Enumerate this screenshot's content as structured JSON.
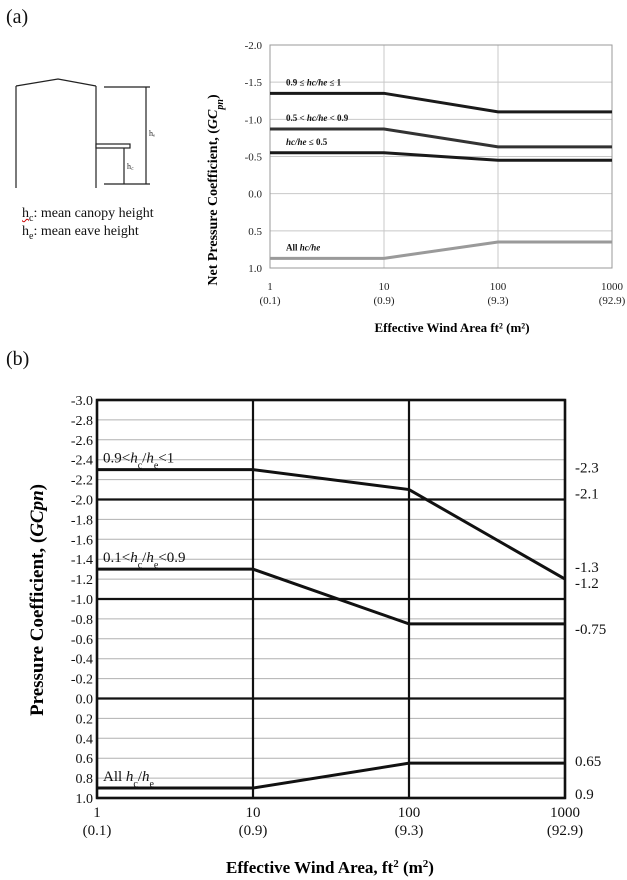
{
  "panel_a": {
    "label": "(a)",
    "sketch": {
      "dim_left": "hₑ",
      "dim_right": "h꜀",
      "notes": [
        {
          "sym": "h",
          "sub": "c",
          "colon": ":",
          "text": " mean canopy height"
        },
        {
          "sym": "h",
          "sub": "e",
          "colon": ":",
          "text": " mean eave height"
        }
      ]
    }
  },
  "panel_b": {
    "label": "(b)"
  },
  "chart_data": [
    {
      "type": "line",
      "x_scale": "log",
      "xlim": [
        1,
        1000
      ],
      "ylim": [
        -2.0,
        1.0
      ],
      "y_inverted": true,
      "grid": true,
      "ylabel": "Net Pressure Coefficient, (GCpn)",
      "ylabel_parts": {
        "main": "Net Pressure Coefficient, (",
        "g": "G",
        "c": "C",
        "sub": "pn",
        "close": ")"
      },
      "xlabel": "Effective Wind Area ft² (m²)",
      "x_ticks": [
        {
          "value": 1,
          "label": "1",
          "metric": "(0.1)"
        },
        {
          "value": 10,
          "label": "10",
          "metric": "(0.9)"
        },
        {
          "value": 100,
          "label": "100",
          "metric": "(9.3)"
        },
        {
          "value": 1000,
          "label": "1000",
          "metric": "(92.9)"
        }
      ],
      "y_ticks": [
        {
          "value": -2.0,
          "label": "-2.0"
        },
        {
          "value": -1.5,
          "label": "-1.5"
        },
        {
          "value": -1.0,
          "label": "-1.0"
        },
        {
          "value": -0.5,
          "label": "-0.5"
        },
        {
          "value": 0.0,
          "label": "0.0"
        },
        {
          "value": 0.5,
          "label": "0.5"
        },
        {
          "value": 1.0,
          "label": "1.0"
        }
      ],
      "series": [
        {
          "label_pre": "0.9 ≤ ",
          "label_it": "hc/he",
          "label_post": " ≤ 1",
          "color": "#1a1a1a",
          "points": [
            [
              1,
              -1.35
            ],
            [
              10,
              -1.35
            ],
            [
              100,
              -1.1
            ],
            [
              1000,
              -1.1
            ]
          ]
        },
        {
          "label_pre": "0.5 < ",
          "label_it": "hc/he",
          "label_post": " < 0.9",
          "color": "#333333",
          "points": [
            [
              1,
              -0.87
            ],
            [
              10,
              -0.87
            ],
            [
              100,
              -0.63
            ],
            [
              1000,
              -0.63
            ]
          ]
        },
        {
          "label_pre": "",
          "label_it": "hc/he",
          "label_post": " ≤ 0.5",
          "color": "#1a1a1a",
          "points": [
            [
              1,
              -0.55
            ],
            [
              10,
              -0.55
            ],
            [
              100,
              -0.45
            ],
            [
              1000,
              -0.45
            ]
          ]
        },
        {
          "label_pre": "All ",
          "label_it": "hc/he",
          "label_post": "",
          "color": "#9a9a9a",
          "points": [
            [
              1,
              0.87
            ],
            [
              10,
              0.87
            ],
            [
              100,
              0.65
            ],
            [
              1000,
              0.65
            ]
          ]
        }
      ]
    },
    {
      "type": "line",
      "x_scale": "log",
      "xlim": [
        1,
        1000
      ],
      "ylim": [
        -3.0,
        1.0
      ],
      "y_inverted": true,
      "grid": true,
      "ylabel": "Pressure Coefficient, (GCpn)",
      "ylabel_parts": {
        "main": "Pressure Coefficient, (",
        "g": "GCpn",
        "close": ")"
      },
      "xlabel_main": "Effective Wind Area, ft",
      "xlabel_sup": "2",
      "xlabel_mid": " (m",
      "xlabel_sup2": "2",
      "xlabel_end": ")",
      "x_ticks": [
        {
          "value": 1,
          "label": "1",
          "metric": "(0.1)"
        },
        {
          "value": 10,
          "label": "10",
          "metric": "(0.9)"
        },
        {
          "value": 100,
          "label": "100",
          "metric": "(9.3)"
        },
        {
          "value": 1000,
          "label": "1000",
          "metric": "(92.9)"
        }
      ],
      "y_ticks": [
        {
          "value": -3.0,
          "label": "-3.0"
        },
        {
          "value": -2.8,
          "label": "-2.8"
        },
        {
          "value": -2.6,
          "label": "-2.6"
        },
        {
          "value": -2.4,
          "label": "-2.4"
        },
        {
          "value": -2.2,
          "label": "-2.2"
        },
        {
          "value": -2.0,
          "label": "-2.0"
        },
        {
          "value": -1.8,
          "label": "-1.8"
        },
        {
          "value": -1.6,
          "label": "-1.6"
        },
        {
          "value": -1.4,
          "label": "-1.4"
        },
        {
          "value": -1.2,
          "label": "-1.2"
        },
        {
          "value": -1.0,
          "label": "-1.0"
        },
        {
          "value": -0.8,
          "label": "-0.8"
        },
        {
          "value": -0.6,
          "label": "-0.6"
        },
        {
          "value": -0.4,
          "label": "-0.4"
        },
        {
          "value": -0.2,
          "label": "-0.2"
        },
        {
          "value": 0.0,
          "label": "0.0"
        },
        {
          "value": 0.2,
          "label": "0.2"
        },
        {
          "value": 0.4,
          "label": "0.4"
        },
        {
          "value": 0.6,
          "label": "0.6"
        },
        {
          "value": 0.8,
          "label": "0.8"
        },
        {
          "value": 1.0,
          "label": "1.0"
        }
      ],
      "series": [
        {
          "l1": "0.9<",
          "i1": "h",
          "s1": "c",
          "l2": "/",
          "i2": "h",
          "s2": "e",
          "l3": "<1",
          "points": [
            [
              1,
              -2.3
            ],
            [
              10,
              -2.3
            ],
            [
              100,
              -2.1
            ],
            [
              1000,
              -1.2
            ]
          ]
        },
        {
          "l1": "0.1<",
          "i1": "h",
          "s1": "c",
          "l2": "/",
          "i2": "h",
          "s2": "e",
          "l3": "<0.9",
          "points": [
            [
              1,
              -1.3
            ],
            [
              10,
              -1.3
            ],
            [
              100,
              -0.75
            ],
            [
              1000,
              -0.75
            ]
          ]
        },
        {
          "l1": "All  ",
          "i1": "h",
          "s1": "c",
          "l2": "/",
          "i2": "h",
          "s2": "e",
          "l3": "",
          "points": [
            [
              1,
              0.9
            ],
            [
              10,
              0.9
            ],
            [
              100,
              0.65
            ],
            [
              1000,
              0.65
            ]
          ]
        }
      ],
      "right_labels": [
        {
          "value": -2.3,
          "label": "-2.3"
        },
        {
          "value": -2.1,
          "label": "-2.1"
        },
        {
          "value": -1.3,
          "label": "-1.3"
        },
        {
          "value": -1.2,
          "label": "-1.2"
        },
        {
          "value": -0.75,
          "label": "-0.75"
        },
        {
          "value": 0.65,
          "label": "0.65"
        },
        {
          "value": 0.9,
          "label": "0.9"
        }
      ]
    }
  ]
}
